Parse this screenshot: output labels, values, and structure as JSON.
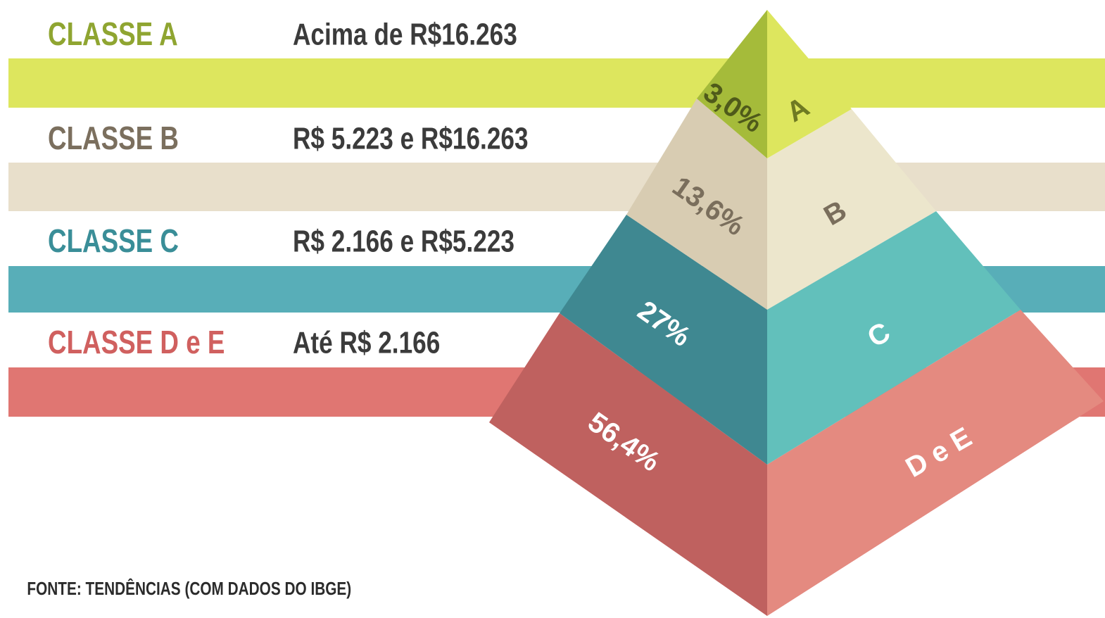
{
  "classes": [
    {
      "name": "CLASSE A",
      "range": "Acima de R$16.263",
      "share": "3,0%",
      "letter": "A"
    },
    {
      "name": "CLASSE B",
      "range": "R$ 5.223 e R$16.263",
      "share": "13,6%",
      "letter": "B"
    },
    {
      "name": "CLASSE C",
      "range": "R$ 2.166 e R$5.223",
      "share": "27%",
      "letter": "C"
    },
    {
      "name": "CLASSE D e E",
      "range": "Até R$ 2.166",
      "share": "56,4%",
      "letter": "D e E"
    }
  ],
  "source": "FONTE: TENDÊNCIAS (COM DADOS DO IBGE)"
}
